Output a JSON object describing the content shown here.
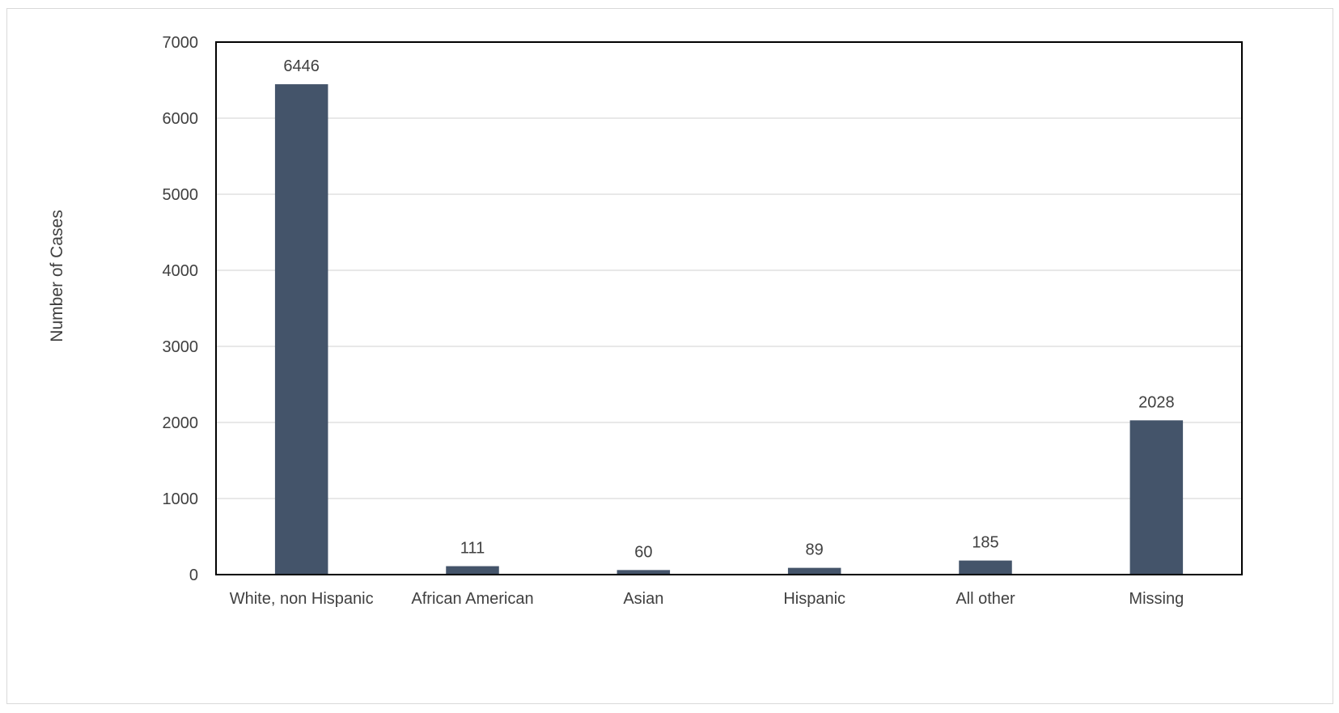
{
  "chart_data": {
    "type": "bar",
    "title": "",
    "xlabel": "",
    "ylabel": "Number of Cases",
    "categories": [
      "White, non Hispanic",
      "African American",
      "Asian",
      "Hispanic",
      "All other",
      "Missing"
    ],
    "values": [
      6446,
      111,
      60,
      89,
      185,
      2028
    ],
    "data_labels": [
      "6446",
      "111",
      "60",
      "89",
      "185",
      "2028"
    ],
    "ylim": [
      0,
      7000
    ],
    "yticks": [
      0,
      1000,
      2000,
      3000,
      4000,
      5000,
      6000,
      7000
    ],
    "grid": true,
    "legend": "none",
    "bar_color": "#44546a"
  }
}
